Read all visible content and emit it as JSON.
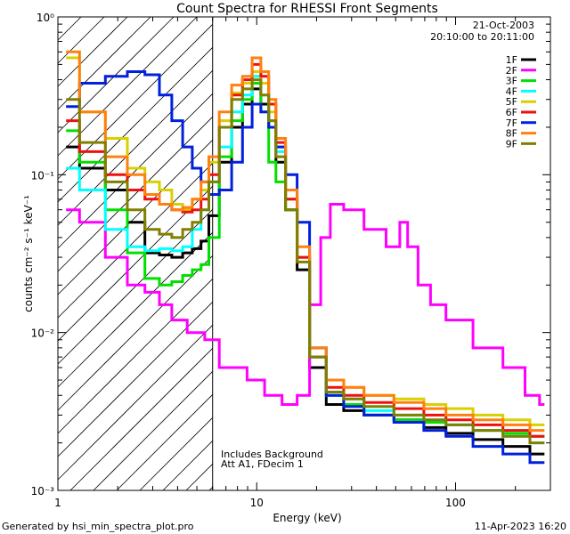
{
  "chart_data": {
    "type": "line",
    "title": "Count Spectra for RHESSI Front Segments",
    "xlabel": "Energy (keV)",
    "ylabel": "counts cm⁻² s⁻¹ keV⁻¹",
    "x_scale": "log",
    "y_scale": "log",
    "xlim": [
      1,
      300
    ],
    "ylim": [
      0.001,
      1
    ],
    "x_ticks": [
      {
        "value": 1,
        "label": "1"
      },
      {
        "value": 10,
        "label": "10"
      },
      {
        "value": 100,
        "label": "100"
      }
    ],
    "y_ticks": [
      {
        "value": 1,
        "label": "10⁰"
      },
      {
        "value": 0.1,
        "label": "10⁻¹"
      },
      {
        "value": 0.01,
        "label": "10⁻²"
      },
      {
        "value": 0.001,
        "label": "10⁻³"
      }
    ],
    "date": "21-Oct-2003",
    "time_range": "20:10:00 to 20:11:00",
    "excluded_region_max_keV": 6,
    "annotations": [
      "Includes Background",
      "Att A1, FDecim  1"
    ],
    "series": [
      {
        "name": "1F",
        "color": "#000000",
        "values": [
          [
            1.1,
            0.15
          ],
          [
            1.5,
            0.11
          ],
          [
            2.0,
            0.08
          ],
          [
            2.5,
            0.05
          ],
          [
            3.0,
            0.032
          ],
          [
            3.5,
            0.031
          ],
          [
            4.0,
            0.03
          ],
          [
            4.5,
            0.032
          ],
          [
            5.0,
            0.034
          ],
          [
            5.5,
            0.038
          ],
          [
            6.0,
            0.055
          ],
          [
            7.0,
            0.12
          ],
          [
            8.0,
            0.2
          ],
          [
            9.0,
            0.28
          ],
          [
            10.0,
            0.35
          ],
          [
            11.0,
            0.28
          ],
          [
            12.0,
            0.2
          ],
          [
            13.0,
            0.12
          ],
          [
            15.0,
            0.06
          ],
          [
            17.0,
            0.025
          ],
          [
            20.0,
            0.006
          ],
          [
            25.0,
            0.0035
          ],
          [
            30.0,
            0.0032
          ],
          [
            40.0,
            0.003
          ],
          [
            60.0,
            0.0028
          ],
          [
            80.0,
            0.0025
          ],
          [
            100.0,
            0.0023
          ],
          [
            150.0,
            0.0021
          ],
          [
            200.0,
            0.0019
          ],
          [
            280.0,
            0.0017
          ]
        ]
      },
      {
        "name": "2F",
        "color": "#ff00ff",
        "values": [
          [
            1.1,
            0.06
          ],
          [
            1.5,
            0.05
          ],
          [
            2.0,
            0.03
          ],
          [
            2.5,
            0.02
          ],
          [
            3.0,
            0.018
          ],
          [
            3.5,
            0.015
          ],
          [
            4.0,
            0.012
          ],
          [
            5.0,
            0.01
          ],
          [
            6.0,
            0.009
          ],
          [
            7.0,
            0.006
          ],
          [
            8.0,
            0.006
          ],
          [
            10.0,
            0.005
          ],
          [
            12.0,
            0.004
          ],
          [
            15.0,
            0.0035
          ],
          [
            17.0,
            0.004
          ],
          [
            20.0,
            0.015
          ],
          [
            22.0,
            0.04
          ],
          [
            25.0,
            0.065
          ],
          [
            30.0,
            0.06
          ],
          [
            40.0,
            0.045
          ],
          [
            50.0,
            0.035
          ],
          [
            55.0,
            0.05
          ],
          [
            60.0,
            0.035
          ],
          [
            70.0,
            0.02
          ],
          [
            80.0,
            0.015
          ],
          [
            100.0,
            0.012
          ],
          [
            150.0,
            0.008
          ],
          [
            200.0,
            0.006
          ],
          [
            250.0,
            0.004
          ],
          [
            280.0,
            0.0035
          ]
        ]
      },
      {
        "name": "3F",
        "color": "#00e000",
        "values": [
          [
            1.1,
            0.19
          ],
          [
            1.5,
            0.12
          ],
          [
            2.0,
            0.06
          ],
          [
            2.5,
            0.032
          ],
          [
            3.0,
            0.022
          ],
          [
            3.5,
            0.02
          ],
          [
            4.0,
            0.021
          ],
          [
            4.5,
            0.023
          ],
          [
            5.0,
            0.025
          ],
          [
            5.5,
            0.027
          ],
          [
            6.0,
            0.04
          ],
          [
            7.0,
            0.13
          ],
          [
            8.0,
            0.22
          ],
          [
            9.0,
            0.3
          ],
          [
            10.0,
            0.38
          ],
          [
            11.0,
            0.25
          ],
          [
            12.0,
            0.12
          ],
          [
            13.0,
            0.09
          ],
          [
            15.0,
            0.06
          ],
          [
            17.0,
            0.03
          ],
          [
            20.0,
            0.007
          ],
          [
            25.0,
            0.004
          ],
          [
            30.0,
            0.0035
          ],
          [
            40.0,
            0.003
          ],
          [
            60.0,
            0.0028
          ],
          [
            80.0,
            0.0027
          ],
          [
            100.0,
            0.0026
          ],
          [
            150.0,
            0.0024
          ],
          [
            200.0,
            0.0023
          ],
          [
            280.0,
            0.0022
          ]
        ]
      },
      {
        "name": "4F",
        "color": "#00ffff",
        "values": [
          [
            1.1,
            0.11
          ],
          [
            1.5,
            0.08
          ],
          [
            2.0,
            0.045
          ],
          [
            2.5,
            0.035
          ],
          [
            3.0,
            0.033
          ],
          [
            3.5,
            0.034
          ],
          [
            4.0,
            0.033
          ],
          [
            4.5,
            0.035
          ],
          [
            5.0,
            0.045
          ],
          [
            5.5,
            0.06
          ],
          [
            6.0,
            0.09
          ],
          [
            7.0,
            0.15
          ],
          [
            8.0,
            0.25
          ],
          [
            9.0,
            0.32
          ],
          [
            10.0,
            0.42
          ],
          [
            11.0,
            0.32
          ],
          [
            12.0,
            0.22
          ],
          [
            13.0,
            0.14
          ],
          [
            15.0,
            0.07
          ],
          [
            17.0,
            0.03
          ],
          [
            20.0,
            0.007
          ],
          [
            25.0,
            0.004
          ],
          [
            30.0,
            0.0038
          ],
          [
            40.0,
            0.0032
          ],
          [
            60.0,
            0.003
          ],
          [
            80.0,
            0.0028
          ],
          [
            100.0,
            0.0026
          ],
          [
            150.0,
            0.0024
          ],
          [
            200.0,
            0.0022
          ],
          [
            280.0,
            0.002
          ]
        ]
      },
      {
        "name": "5F",
        "color": "#d8d000",
        "values": [
          [
            1.1,
            0.55
          ],
          [
            1.5,
            0.25
          ],
          [
            2.0,
            0.17
          ],
          [
            2.5,
            0.11
          ],
          [
            3.0,
            0.09
          ],
          [
            3.5,
            0.08
          ],
          [
            4.0,
            0.065
          ],
          [
            4.5,
            0.06
          ],
          [
            5.0,
            0.07
          ],
          [
            5.5,
            0.08
          ],
          [
            6.0,
            0.12
          ],
          [
            7.0,
            0.22
          ],
          [
            8.0,
            0.33
          ],
          [
            9.0,
            0.38
          ],
          [
            10.0,
            0.45
          ],
          [
            11.0,
            0.38
          ],
          [
            12.0,
            0.25
          ],
          [
            13.0,
            0.15
          ],
          [
            15.0,
            0.07
          ],
          [
            17.0,
            0.03
          ],
          [
            20.0,
            0.008
          ],
          [
            25.0,
            0.005
          ],
          [
            30.0,
            0.0045
          ],
          [
            40.0,
            0.004
          ],
          [
            60.0,
            0.0038
          ],
          [
            80.0,
            0.0035
          ],
          [
            100.0,
            0.0033
          ],
          [
            150.0,
            0.003
          ],
          [
            200.0,
            0.0028
          ],
          [
            280.0,
            0.0026
          ]
        ]
      },
      {
        "name": "6F",
        "color": "#ee1010",
        "values": [
          [
            1.1,
            0.22
          ],
          [
            1.5,
            0.14
          ],
          [
            2.0,
            0.1
          ],
          [
            2.5,
            0.08
          ],
          [
            3.0,
            0.07
          ],
          [
            3.5,
            0.065
          ],
          [
            4.0,
            0.06
          ],
          [
            4.5,
            0.058
          ],
          [
            5.0,
            0.06
          ],
          [
            5.5,
            0.07
          ],
          [
            6.0,
            0.1
          ],
          [
            7.0,
            0.2
          ],
          [
            8.0,
            0.32
          ],
          [
            9.0,
            0.4
          ],
          [
            10.0,
            0.5
          ],
          [
            11.0,
            0.42
          ],
          [
            12.0,
            0.28
          ],
          [
            13.0,
            0.16
          ],
          [
            15.0,
            0.07
          ],
          [
            17.0,
            0.03
          ],
          [
            20.0,
            0.007
          ],
          [
            25.0,
            0.0045
          ],
          [
            30.0,
            0.004
          ],
          [
            40.0,
            0.0036
          ],
          [
            60.0,
            0.0033
          ],
          [
            80.0,
            0.003
          ],
          [
            100.0,
            0.0028
          ],
          [
            150.0,
            0.0026
          ],
          [
            200.0,
            0.0024
          ],
          [
            280.0,
            0.0022
          ]
        ]
      },
      {
        "name": "7F",
        "color": "#0020dd",
        "values": [
          [
            1.1,
            0.27
          ],
          [
            1.5,
            0.38
          ],
          [
            2.0,
            0.42
          ],
          [
            2.5,
            0.45
          ],
          [
            3.0,
            0.43
          ],
          [
            3.5,
            0.32
          ],
          [
            4.0,
            0.22
          ],
          [
            4.5,
            0.15
          ],
          [
            5.0,
            0.11
          ],
          [
            5.5,
            0.09
          ],
          [
            6.0,
            0.075
          ],
          [
            7.0,
            0.08
          ],
          [
            8.0,
            0.12
          ],
          [
            9.0,
            0.2
          ],
          [
            10.0,
            0.28
          ],
          [
            11.0,
            0.25
          ],
          [
            12.0,
            0.2
          ],
          [
            13.0,
            0.15
          ],
          [
            15.0,
            0.1
          ],
          [
            17.0,
            0.05
          ],
          [
            20.0,
            0.008
          ],
          [
            25.0,
            0.004
          ],
          [
            30.0,
            0.0034
          ],
          [
            40.0,
            0.003
          ],
          [
            60.0,
            0.0027
          ],
          [
            80.0,
            0.0024
          ],
          [
            100.0,
            0.0022
          ],
          [
            150.0,
            0.0019
          ],
          [
            200.0,
            0.0017
          ],
          [
            280.0,
            0.0015
          ]
        ]
      },
      {
        "name": "8F",
        "color": "#ff8010",
        "values": [
          [
            1.1,
            0.6
          ],
          [
            1.5,
            0.25
          ],
          [
            2.0,
            0.13
          ],
          [
            2.5,
            0.1
          ],
          [
            3.0,
            0.075
          ],
          [
            3.5,
            0.065
          ],
          [
            4.0,
            0.06
          ],
          [
            4.5,
            0.062
          ],
          [
            5.0,
            0.07
          ],
          [
            5.5,
            0.09
          ],
          [
            6.0,
            0.13
          ],
          [
            7.0,
            0.25
          ],
          [
            8.0,
            0.37
          ],
          [
            9.0,
            0.42
          ],
          [
            10.0,
            0.55
          ],
          [
            11.0,
            0.45
          ],
          [
            12.0,
            0.3
          ],
          [
            13.0,
            0.17
          ],
          [
            15.0,
            0.08
          ],
          [
            17.0,
            0.035
          ],
          [
            20.0,
            0.008
          ],
          [
            25.0,
            0.005
          ],
          [
            30.0,
            0.0045
          ],
          [
            40.0,
            0.004
          ],
          [
            60.0,
            0.0036
          ],
          [
            80.0,
            0.0033
          ],
          [
            100.0,
            0.003
          ],
          [
            150.0,
            0.0028
          ],
          [
            200.0,
            0.0026
          ],
          [
            280.0,
            0.0024
          ]
        ]
      },
      {
        "name": "9F",
        "color": "#808000",
        "values": [
          [
            1.1,
            0.3
          ],
          [
            1.5,
            0.16
          ],
          [
            2.0,
            0.09
          ],
          [
            2.5,
            0.06
          ],
          [
            3.0,
            0.045
          ],
          [
            3.5,
            0.042
          ],
          [
            4.0,
            0.04
          ],
          [
            4.5,
            0.045
          ],
          [
            5.0,
            0.05
          ],
          [
            5.5,
            0.06
          ],
          [
            6.0,
            0.09
          ],
          [
            7.0,
            0.2
          ],
          [
            8.0,
            0.3
          ],
          [
            9.0,
            0.35
          ],
          [
            10.0,
            0.4
          ],
          [
            11.0,
            0.32
          ],
          [
            12.0,
            0.22
          ],
          [
            13.0,
            0.13
          ],
          [
            15.0,
            0.06
          ],
          [
            17.0,
            0.028
          ],
          [
            20.0,
            0.007
          ],
          [
            25.0,
            0.0042
          ],
          [
            30.0,
            0.0038
          ],
          [
            40.0,
            0.0034
          ],
          [
            60.0,
            0.003
          ],
          [
            80.0,
            0.0028
          ],
          [
            100.0,
            0.0026
          ],
          [
            150.0,
            0.0024
          ],
          [
            200.0,
            0.0022
          ],
          [
            280.0,
            0.002
          ]
        ]
      }
    ]
  },
  "footer": {
    "generated_by": "Generated by hsi_min_spectra_plot.pro",
    "timestamp": "11-Apr-2023 16:20"
  }
}
